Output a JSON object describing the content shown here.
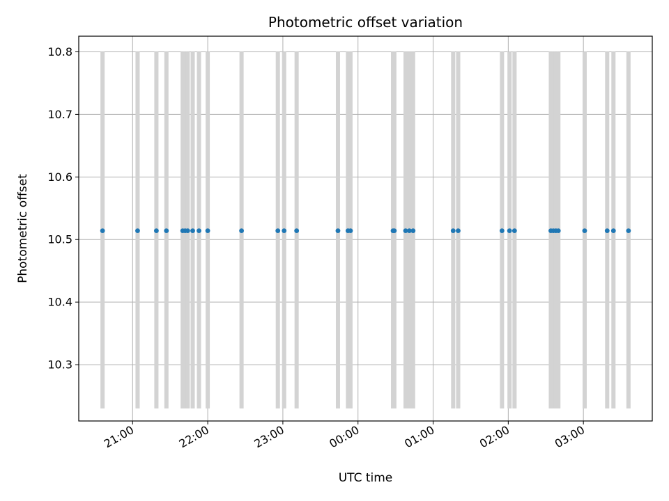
{
  "chart_data": {
    "type": "scatter",
    "title": "Photometric offset variation",
    "xlabel": "UTC time",
    "ylabel": "Photometric offset",
    "grid": true,
    "x_ticks": [
      "21:00",
      "22:00",
      "23:00",
      "00:00",
      "01:00",
      "02:00",
      "03:00"
    ],
    "x_tick_times": [
      "21:00",
      "22:00",
      "23:00",
      "24:00",
      "25:00",
      "26:00",
      "27:00"
    ],
    "xlim": [
      "20:17",
      "27:55"
    ],
    "y_ticks": [
      "10.3",
      "10.4",
      "10.5",
      "10.6",
      "10.7",
      "10.8"
    ],
    "ylim": [
      10.21,
      10.825
    ],
    "bar_range": [
      10.23,
      10.8
    ],
    "points": [
      {
        "x": "20:36",
        "y": 10.514
      },
      {
        "x": "21:04",
        "y": 10.514
      },
      {
        "x": "21:19",
        "y": 10.514
      },
      {
        "x": "21:27",
        "y": 10.514
      },
      {
        "x": "21:40",
        "y": 10.514
      },
      {
        "x": "21:42",
        "y": 10.514
      },
      {
        "x": "21:44",
        "y": 10.514
      },
      {
        "x": "21:48",
        "y": 10.514
      },
      {
        "x": "21:53",
        "y": 10.514
      },
      {
        "x": "22:00",
        "y": 10.514
      },
      {
        "x": "22:27",
        "y": 10.514
      },
      {
        "x": "22:56",
        "y": 10.514
      },
      {
        "x": "23:01",
        "y": 10.514
      },
      {
        "x": "23:11",
        "y": 10.514
      },
      {
        "x": "23:44",
        "y": 10.514
      },
      {
        "x": "23:52",
        "y": 10.514
      },
      {
        "x": "23:54",
        "y": 10.514
      },
      {
        "x": "24:28",
        "y": 10.514
      },
      {
        "x": "24:29",
        "y": 10.514
      },
      {
        "x": "24:38",
        "y": 10.514
      },
      {
        "x": "24:41",
        "y": 10.514
      },
      {
        "x": "24:44",
        "y": 10.514
      },
      {
        "x": "25:16",
        "y": 10.514
      },
      {
        "x": "25:20",
        "y": 10.514
      },
      {
        "x": "25:55",
        "y": 10.514
      },
      {
        "x": "26:01",
        "y": 10.514
      },
      {
        "x": "26:05",
        "y": 10.514
      },
      {
        "x": "26:34",
        "y": 10.514
      },
      {
        "x": "26:36",
        "y": 10.514
      },
      {
        "x": "26:38",
        "y": 10.514
      },
      {
        "x": "26:40",
        "y": 10.514
      },
      {
        "x": "27:01",
        "y": 10.514
      },
      {
        "x": "27:19",
        "y": 10.514
      },
      {
        "x": "27:24",
        "y": 10.514
      },
      {
        "x": "27:36",
        "y": 10.514
      }
    ],
    "colors": {
      "point": "#1f77b4",
      "bar": "#d3d3d3",
      "grid": "#b0b0b0",
      "axes": "#000000"
    }
  }
}
